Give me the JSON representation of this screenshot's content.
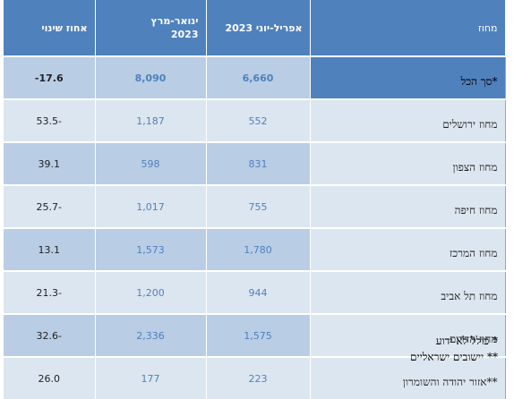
{
  "table": {
    "headers": {
      "change": "אחוז שינוי",
      "janmar": "ינואר-מרץ 2023",
      "aprjun": "אפריל-יוני 2023",
      "district": "מחוז"
    },
    "rows": [
      {
        "district": "סך הכל*",
        "aprjun": "6,660",
        "janmar": "8,090",
        "change": "-17.6"
      },
      {
        "district": "מחוז ירושלים",
        "aprjun": "552",
        "janmar": "1,187",
        "change": "53.5-"
      },
      {
        "district": "מחוז הצפון",
        "aprjun": "831",
        "janmar": "598",
        "change": "39.1"
      },
      {
        "district": "מחוז חיפה",
        "aprjun": "755",
        "janmar": "1,017",
        "change": "25.7-"
      },
      {
        "district": "מחוז המרכז",
        "aprjun": "1,780",
        "janmar": "1,573",
        "change": "13.1"
      },
      {
        "district": "מחוז תל אביב",
        "aprjun": "944",
        "janmar": "1,200",
        "change": "21.3-"
      },
      {
        "district": "מחוז הדרום",
        "aprjun": "1,575",
        "janmar": "2,336",
        "change": "32.6-"
      },
      {
        "district": "אזור יהודה והשומרון**",
        "aprjun": "223",
        "janmar": "177",
        "change": "26.0"
      }
    ]
  },
  "notes": {
    "note1": "* כולל לא ידוע",
    "note2": "** יישובים ישראליים"
  }
}
